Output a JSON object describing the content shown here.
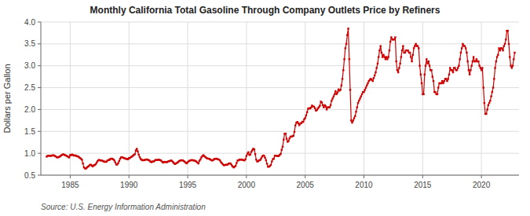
{
  "chart_data": {
    "type": "line",
    "title": "Monthly California Total Gasoline Through Company Outlets Price by Refiners",
    "ylabel": "Dollars per Gallon",
    "annotations": [
      "Source: U.S. Energy Information Administration"
    ],
    "color": "#cc0000",
    "marker": "square",
    "line_style": "solid",
    "grid": true,
    "xlim": [
      1982.5,
      2023.2
    ],
    "xticks": [
      1985,
      1990,
      1995,
      2000,
      2005,
      2010,
      2015,
      2020
    ],
    "ylim": [
      0.5,
      4.0
    ],
    "yticks": [
      0.5,
      {
        "value": 1.0,
        "label": "1.0"
      },
      1.5,
      {
        "value": 2.0,
        "label": "2.0"
      },
      2.5,
      {
        "value": 3.0,
        "label": "3.0"
      },
      3.5,
      {
        "value": 4.0,
        "label": "4.0"
      }
    ],
    "x": [
      1983.0,
      1983.083,
      1983.167,
      1983.25,
      1983.333,
      1983.417,
      1983.5,
      1983.583,
      1983.667,
      1983.75,
      1983.833,
      1983.917,
      1984.0,
      1984.083,
      1984.167,
      1984.25,
      1984.333,
      1984.417,
      1984.5,
      1984.583,
      1984.667,
      1984.75,
      1984.833,
      1984.917,
      1985.0,
      1985.083,
      1985.167,
      1985.25,
      1985.333,
      1985.417,
      1985.5,
      1985.583,
      1985.667,
      1985.75,
      1985.833,
      1985.917,
      1986.0,
      1986.083,
      1986.167,
      1986.25,
      1986.333,
      1986.417,
      1986.5,
      1986.583,
      1986.667,
      1986.75,
      1986.833,
      1986.917,
      1987.0,
      1987.083,
      1987.167,
      1987.25,
      1987.333,
      1987.417,
      1987.5,
      1987.583,
      1987.667,
      1987.75,
      1987.833,
      1987.917,
      1988.0,
      1988.083,
      1988.167,
      1988.25,
      1988.333,
      1988.417,
      1988.5,
      1988.583,
      1988.667,
      1988.75,
      1988.833,
      1988.917,
      1989.0,
      1989.083,
      1989.167,
      1989.25,
      1989.333,
      1989.417,
      1989.5,
      1989.583,
      1989.667,
      1989.75,
      1989.833,
      1989.917,
      1990.0,
      1990.083,
      1990.167,
      1990.25,
      1990.333,
      1990.417,
      1990.5,
      1990.583,
      1990.667,
      1990.75,
      1990.833,
      1990.917,
      1991.0,
      1991.083,
      1991.167,
      1991.25,
      1991.333,
      1991.417,
      1991.5,
      1991.583,
      1991.667,
      1991.75,
      1991.833,
      1991.917,
      1992.0,
      1992.083,
      1992.167,
      1992.25,
      1992.333,
      1992.417,
      1992.5,
      1992.583,
      1992.667,
      1992.75,
      1992.833,
      1992.917,
      1993.0,
      1993.083,
      1993.167,
      1993.25,
      1993.333,
      1993.417,
      1993.5,
      1993.583,
      1993.667,
      1993.75,
      1993.833,
      1993.917,
      1994.0,
      1994.083,
      1994.167,
      1994.25,
      1994.333,
      1994.417,
      1994.5,
      1994.583,
      1994.667,
      1994.75,
      1994.833,
      1994.917,
      1995.0,
      1995.083,
      1995.167,
      1995.25,
      1995.333,
      1995.417,
      1995.5,
      1995.583,
      1995.667,
      1995.75,
      1995.833,
      1995.917,
      1996.0,
      1996.083,
      1996.167,
      1996.25,
      1996.333,
      1996.417,
      1996.5,
      1996.583,
      1996.667,
      1996.75,
      1996.833,
      1996.917,
      1997.0,
      1997.083,
      1997.167,
      1997.25,
      1997.333,
      1997.417,
      1997.5,
      1997.583,
      1997.667,
      1997.75,
      1997.833,
      1997.917,
      1998.0,
      1998.083,
      1998.167,
      1998.25,
      1998.333,
      1998.417,
      1998.5,
      1998.583,
      1998.667,
      1998.75,
      1998.833,
      1998.917,
      1999.0,
      1999.083,
      1999.167,
      1999.25,
      1999.333,
      1999.417,
      1999.5,
      1999.583,
      1999.667,
      1999.75,
      1999.833,
      1999.917,
      2000.0,
      2000.083,
      2000.167,
      2000.25,
      2000.333,
      2000.417,
      2000.5,
      2000.583,
      2000.667,
      2000.75,
      2000.833,
      2000.917,
      2001.0,
      2001.083,
      2001.167,
      2001.25,
      2001.333,
      2001.417,
      2001.5,
      2001.583,
      2001.667,
      2001.75,
      2001.833,
      2001.917,
      2002.0,
      2002.083,
      2002.167,
      2002.25,
      2002.333,
      2002.417,
      2002.5,
      2002.583,
      2002.667,
      2002.75,
      2002.833,
      2002.917,
      2003.0,
      2003.083,
      2003.167,
      2003.25,
      2003.333,
      2003.417,
      2003.5,
      2003.583,
      2003.667,
      2003.75,
      2003.833,
      2003.917,
      2004.0,
      2004.083,
      2004.167,
      2004.25,
      2004.333,
      2004.417,
      2004.5,
      2004.583,
      2004.667,
      2004.75,
      2004.833,
      2004.917,
      2005.0,
      2005.083,
      2005.167,
      2005.25,
      2005.333,
      2005.417,
      2005.5,
      2005.583,
      2005.667,
      2005.75,
      2005.833,
      2005.917,
      2006.0,
      2006.083,
      2006.167,
      2006.25,
      2006.333,
      2006.417,
      2006.5,
      2006.583,
      2006.667,
      2006.75,
      2006.833,
      2006.917,
      2007.0,
      2007.083,
      2007.167,
      2007.25,
      2007.333,
      2007.417,
      2007.5,
      2007.583,
      2007.667,
      2007.75,
      2007.833,
      2007.917,
      2008.0,
      2008.083,
      2008.167,
      2008.25,
      2008.333,
      2008.417,
      2008.5,
      2008.583,
      2008.667,
      2008.75,
      2008.833,
      2008.917,
      2009.0,
      2009.083,
      2009.167,
      2009.25,
      2009.333,
      2009.417,
      2009.5,
      2009.583,
      2009.667,
      2009.75,
      2009.833,
      2009.917,
      2010.0,
      2010.083,
      2010.167,
      2010.25,
      2010.333,
      2010.417,
      2010.5,
      2010.583,
      2010.667,
      2010.75,
      2010.833,
      2010.917,
      2011.0,
      2011.083,
      2011.167,
      2011.25,
      2011.333,
      2011.417,
      2011.5,
      2011.583,
      2011.667,
      2011.75,
      2011.833,
      2011.917,
      2012.0,
      2012.083,
      2012.167,
      2012.25,
      2012.333,
      2012.417,
      2012.5,
      2012.583,
      2012.667,
      2012.75,
      2012.833,
      2012.917,
      2013.0,
      2013.083,
      2013.167,
      2013.25,
      2013.333,
      2013.417,
      2013.5,
      2013.583,
      2013.667,
      2013.75,
      2013.833,
      2013.917,
      2014.0,
      2014.083,
      2014.167,
      2014.25,
      2014.333,
      2014.417,
      2014.5,
      2014.583,
      2014.667,
      2014.75,
      2014.833,
      2014.917,
      2015.0,
      2015.083,
      2015.167,
      2015.25,
      2015.333,
      2015.417,
      2015.5,
      2015.583,
      2015.667,
      2015.75,
      2015.833,
      2015.917,
      2016.0,
      2016.083,
      2016.167,
      2016.25,
      2016.333,
      2016.417,
      2016.5,
      2016.583,
      2016.667,
      2016.75,
      2016.833,
      2016.917,
      2017.0,
      2017.083,
      2017.167,
      2017.25,
      2017.333,
      2017.417,
      2017.5,
      2017.583,
      2017.667,
      2017.75,
      2017.833,
      2017.917,
      2018.0,
      2018.083,
      2018.167,
      2018.25,
      2018.333,
      2018.417,
      2018.5,
      2018.583,
      2018.667,
      2018.75,
      2018.833,
      2018.917,
      2019.0,
      2019.083,
      2019.167,
      2019.25,
      2019.333,
      2019.417,
      2019.5,
      2019.583,
      2019.667,
      2019.75,
      2019.833,
      2019.917,
      2020.0,
      2020.083,
      2020.167,
      2020.25,
      2020.333,
      2020.417,
      2020.5,
      2020.583,
      2020.667,
      2020.75,
      2020.833,
      2020.917,
      2021.0,
      2021.083,
      2021.167,
      2021.25,
      2021.333,
      2021.417,
      2021.5,
      2021.583,
      2021.667,
      2021.75,
      2021.833,
      2021.917,
      2022.0,
      2022.083,
      2022.167,
      2022.25,
      2022.333,
      2022.417,
      2022.5,
      2022.583,
      2022.667,
      2022.75,
      2022.833
    ],
    "values": [
      0.924,
      0.941,
      0.946,
      0.944,
      0.937,
      0.948,
      0.95,
      0.955,
      0.942,
      0.931,
      0.913,
      0.904,
      0.913,
      0.92,
      0.937,
      0.953,
      0.968,
      0.976,
      0.965,
      0.955,
      0.946,
      0.932,
      0.917,
      0.904,
      0.961,
      0.957,
      0.972,
      0.957,
      0.947,
      0.952,
      0.94,
      0.932,
      0.93,
      0.909,
      0.891,
      0.876,
      0.852,
      0.768,
      0.679,
      0.655,
      0.649,
      0.673,
      0.693,
      0.706,
      0.733,
      0.739,
      0.718,
      0.7,
      0.724,
      0.731,
      0.749,
      0.784,
      0.82,
      0.847,
      0.844,
      0.836,
      0.836,
      0.829,
      0.813,
      0.812,
      0.803,
      0.807,
      0.833,
      0.845,
      0.847,
      0.87,
      0.877,
      0.874,
      0.862,
      0.839,
      0.793,
      0.745,
      0.742,
      0.775,
      0.824,
      0.875,
      0.907,
      0.91,
      0.901,
      0.889,
      0.884,
      0.872,
      0.87,
      0.862,
      0.89,
      0.891,
      0.914,
      0.924,
      0.94,
      0.964,
      0.977,
      1.064,
      1.102,
      1.043,
      0.968,
      0.91,
      0.87,
      0.85,
      0.84,
      0.843,
      0.843,
      0.856,
      0.858,
      0.855,
      0.846,
      0.833,
      0.808,
      0.797,
      0.813,
      0.809,
      0.826,
      0.845,
      0.847,
      0.845,
      0.855,
      0.849,
      0.843,
      0.831,
      0.802,
      0.787,
      0.804,
      0.802,
      0.797,
      0.799,
      0.813,
      0.82,
      0.826,
      0.835,
      0.825,
      0.8,
      0.773,
      0.754,
      0.768,
      0.779,
      0.795,
      0.818,
      0.83,
      0.839,
      0.84,
      0.838,
      0.822,
      0.808,
      0.783,
      0.77,
      0.796,
      0.815,
      0.832,
      0.839,
      0.843,
      0.843,
      0.836,
      0.832,
      0.824,
      0.808,
      0.786,
      0.768,
      0.828,
      0.858,
      0.906,
      0.937,
      0.956,
      0.936,
      0.914,
      0.895,
      0.882,
      0.878,
      0.873,
      0.859,
      0.845,
      0.835,
      0.843,
      0.868,
      0.872,
      0.877,
      0.87,
      0.862,
      0.855,
      0.836,
      0.798,
      0.771,
      0.745,
      0.727,
      0.73,
      0.738,
      0.737,
      0.744,
      0.766,
      0.77,
      0.76,
      0.726,
      0.698,
      0.677,
      0.694,
      0.714,
      0.779,
      0.838,
      0.839,
      0.858,
      0.852,
      0.858,
      0.849,
      0.844,
      0.837,
      0.863,
      0.94,
      0.991,
      1.024,
      0.96,
      0.974,
      1.032,
      1.068,
      1.105,
      1.088,
      0.98,
      0.855,
      0.811,
      0.82,
      0.84,
      0.843,
      0.88,
      0.924,
      0.948,
      0.945,
      0.9,
      0.84,
      0.762,
      0.692,
      0.696,
      0.709,
      0.735,
      0.812,
      0.866,
      0.878,
      0.946,
      0.944,
      0.94,
      0.937,
      0.938,
      0.962,
      0.986,
      1.08,
      1.15,
      1.31,
      1.445,
      1.45,
      1.332,
      1.263,
      1.281,
      1.34,
      1.38,
      1.38,
      1.39,
      1.4,
      1.49,
      1.638,
      1.697,
      1.716,
      1.684,
      1.642,
      1.678,
      1.689,
      1.72,
      1.717,
      1.774,
      1.807,
      1.865,
      1.94,
      2.018,
      2.031,
      2.023,
      2.044,
      2.091,
      2.069,
      2.063,
      2.029,
      1.975,
      1.988,
      2.026,
      2.051,
      2.085,
      2.18,
      2.16,
      2.1,
      2.05,
      2.1,
      2.07,
      2.0,
      2.05,
      2.05,
      2.05,
      2.1,
      2.2,
      2.25,
      2.3,
      2.35,
      2.42,
      2.35,
      2.39,
      2.46,
      2.43,
      2.45,
      2.55,
      2.7,
      2.9,
      3.15,
      3.4,
      3.5,
      3.7,
      3.85,
      3.15,
      2.45,
      1.75,
      1.7,
      1.75,
      1.8,
      1.85,
      1.95,
      2.05,
      2.15,
      2.2,
      2.25,
      2.3,
      2.35,
      2.4,
      2.4,
      2.45,
      2.5,
      2.55,
      2.6,
      2.65,
      2.68,
      2.7,
      2.68,
      2.65,
      2.72,
      2.78,
      2.85,
      2.95,
      3.05,
      3.2,
      3.35,
      3.45,
      3.3,
      3.2,
      3.25,
      3.2,
      3.15,
      3.2,
      3.15,
      3.2,
      3.35,
      3.55,
      3.65,
      3.6,
      3.6,
      3.6,
      3.65,
      3.1,
      2.9,
      2.85,
      2.95,
      3.05,
      3.2,
      3.35,
      3.45,
      3.3,
      3.3,
      3.35,
      3.35,
      3.35,
      3.3,
      3.3,
      3.2,
      3.1,
      3.25,
      3.4,
      3.45,
      3.5,
      3.45,
      3.45,
      3.4,
      3.0,
      2.8,
      2.6,
      2.35,
      2.35,
      2.8,
      3.0,
      3.15,
      3.05,
      3.1,
      3.0,
      2.9,
      2.9,
      2.75,
      2.65,
      2.4,
      2.4,
      2.35,
      2.35,
      2.5,
      2.6,
      2.6,
      2.6,
      2.65,
      2.6,
      2.65,
      2.7,
      2.7,
      2.65,
      2.7,
      2.8,
      2.95,
      2.9,
      2.9,
      2.85,
      2.95,
      2.95,
      2.9,
      2.9,
      2.95,
      3.0,
      3.15,
      3.3,
      3.4,
      3.5,
      3.45,
      3.45,
      3.4,
      3.3,
      3.1,
      2.9,
      2.8,
      2.9,
      3.0,
      3.1,
      3.2,
      3.1,
      3.1,
      3.15,
      3.1,
      3.1,
      3.0,
      2.95,
      2.9,
      2.95,
      2.5,
      2.15,
      1.9,
      1.9,
      2.0,
      2.1,
      2.15,
      2.2,
      2.3,
      2.4,
      2.5,
      2.7,
      2.95,
      3.1,
      3.2,
      3.25,
      3.4,
      3.35,
      3.4,
      3.4,
      3.35,
      3.45,
      3.5,
      3.6,
      3.8,
      3.8,
      3.5,
      3.2,
      3.0,
      2.95,
      3.0,
      3.15,
      3.3
    ]
  }
}
